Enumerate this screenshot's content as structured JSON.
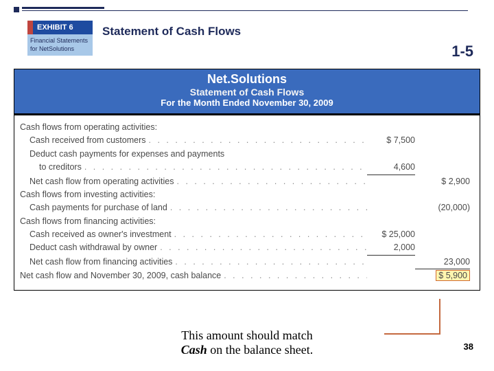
{
  "accent": {
    "color": "#1e2a5a"
  },
  "exhibit": {
    "badge": "EXHIBIT 6",
    "sub1": "Financial Statements",
    "sub2": "for NetSolutions"
  },
  "title": "Statement of Cash Flows",
  "sequence": "1-5",
  "statement": {
    "company": "Net.Solutions",
    "title": "Statement of Cash Flows",
    "period": "For the Month Ended November 30, 2009",
    "colors": {
      "header_bg": "#3a6bbd",
      "header_text": "#ffffff",
      "body_text": "#4a4a4a",
      "highlight_bg": "#fff6b0",
      "highlight_border": "#d06a2f",
      "underline": "#333333"
    },
    "lines": [
      {
        "label": "Cash flows from operating activities:",
        "indent": 0
      },
      {
        "label": "Cash received from customers",
        "indent": 1,
        "dots": true,
        "col1": "$  7,500"
      },
      {
        "label": "Deduct cash payments for expenses and payments",
        "indent": 1
      },
      {
        "label": "to creditors",
        "indent": 2,
        "dots": true,
        "col1": "4,600",
        "col1_underline": true
      },
      {
        "label": "Net cash flow from operating activities",
        "indent": 1,
        "dots": true,
        "col2": "$  2,900"
      },
      {
        "label": "Cash flows from investing activities:",
        "indent": 0
      },
      {
        "label": "Cash payments for purchase of land",
        "indent": 1,
        "dots": true,
        "col2": "(20,000)"
      },
      {
        "label": "Cash flows from financing activities:",
        "indent": 0
      },
      {
        "label": "Cash received as owner's investment",
        "indent": 1,
        "dots": true,
        "col1": "$ 25,000"
      },
      {
        "label": "Deduct cash withdrawal by owner",
        "indent": 1,
        "dots": true,
        "col1": "2,000",
        "col1_underline": true
      },
      {
        "label": "Net cash flow from financing activities",
        "indent": 1,
        "dots": true,
        "col2": "23,000",
        "col2_underline": true
      },
      {
        "label": "Net cash flow and November 30, 2009, cash balance",
        "indent": 0,
        "dots": true,
        "col2": "$  5,900",
        "col2_highlight": true,
        "col2_double": true
      }
    ]
  },
  "note_line1": "This amount should match",
  "note_cash": "Cash",
  "note_line2": " on the balance sheet.",
  "slide_number": "38",
  "callout_color": "#c4693f"
}
